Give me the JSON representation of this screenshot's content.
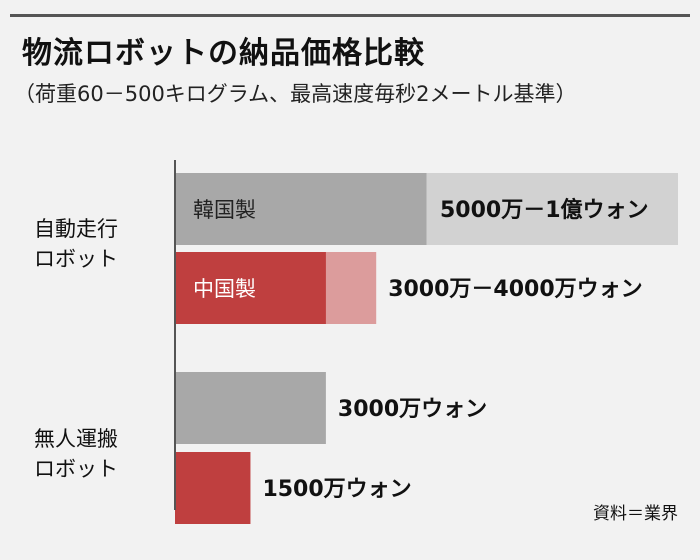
{
  "header": {
    "title": "物流ロボットの納品価格比較",
    "subtitle": "（荷重60－500キログラム、最高速度毎秒2メートル基準）"
  },
  "source": "資料＝業界",
  "colors": {
    "korea_dark": "#a8a8a8",
    "korea_light": "#d2d2d2",
    "china_dark": "#bf3f3f",
    "china_light": "#dc9c9c"
  },
  "chart_data": {
    "type": "bar",
    "orientation": "horizontal",
    "unit": "万ウォン",
    "groups": [
      {
        "name_lines": [
          "自動走行",
          "ロボット"
        ],
        "bars": [
          {
            "label": "韓国製",
            "min": 5000,
            "max": 10000,
            "value_label": "5000万－1億ウォン",
            "color_key": "korea"
          },
          {
            "label": "中国製",
            "min": 3000,
            "max": 4000,
            "value_label": "3000万－4000万ウォン",
            "color_key": "china"
          }
        ]
      },
      {
        "name_lines": [
          "無人運搬",
          "ロボット"
        ],
        "bars": [
          {
            "label": "",
            "min": 3000,
            "max": 3000,
            "value_label": "3000万ウォン",
            "color_key": "korea"
          },
          {
            "label": "",
            "min": 1500,
            "max": 1500,
            "value_label": "1500万ウォン",
            "color_key": "china"
          }
        ]
      }
    ]
  }
}
